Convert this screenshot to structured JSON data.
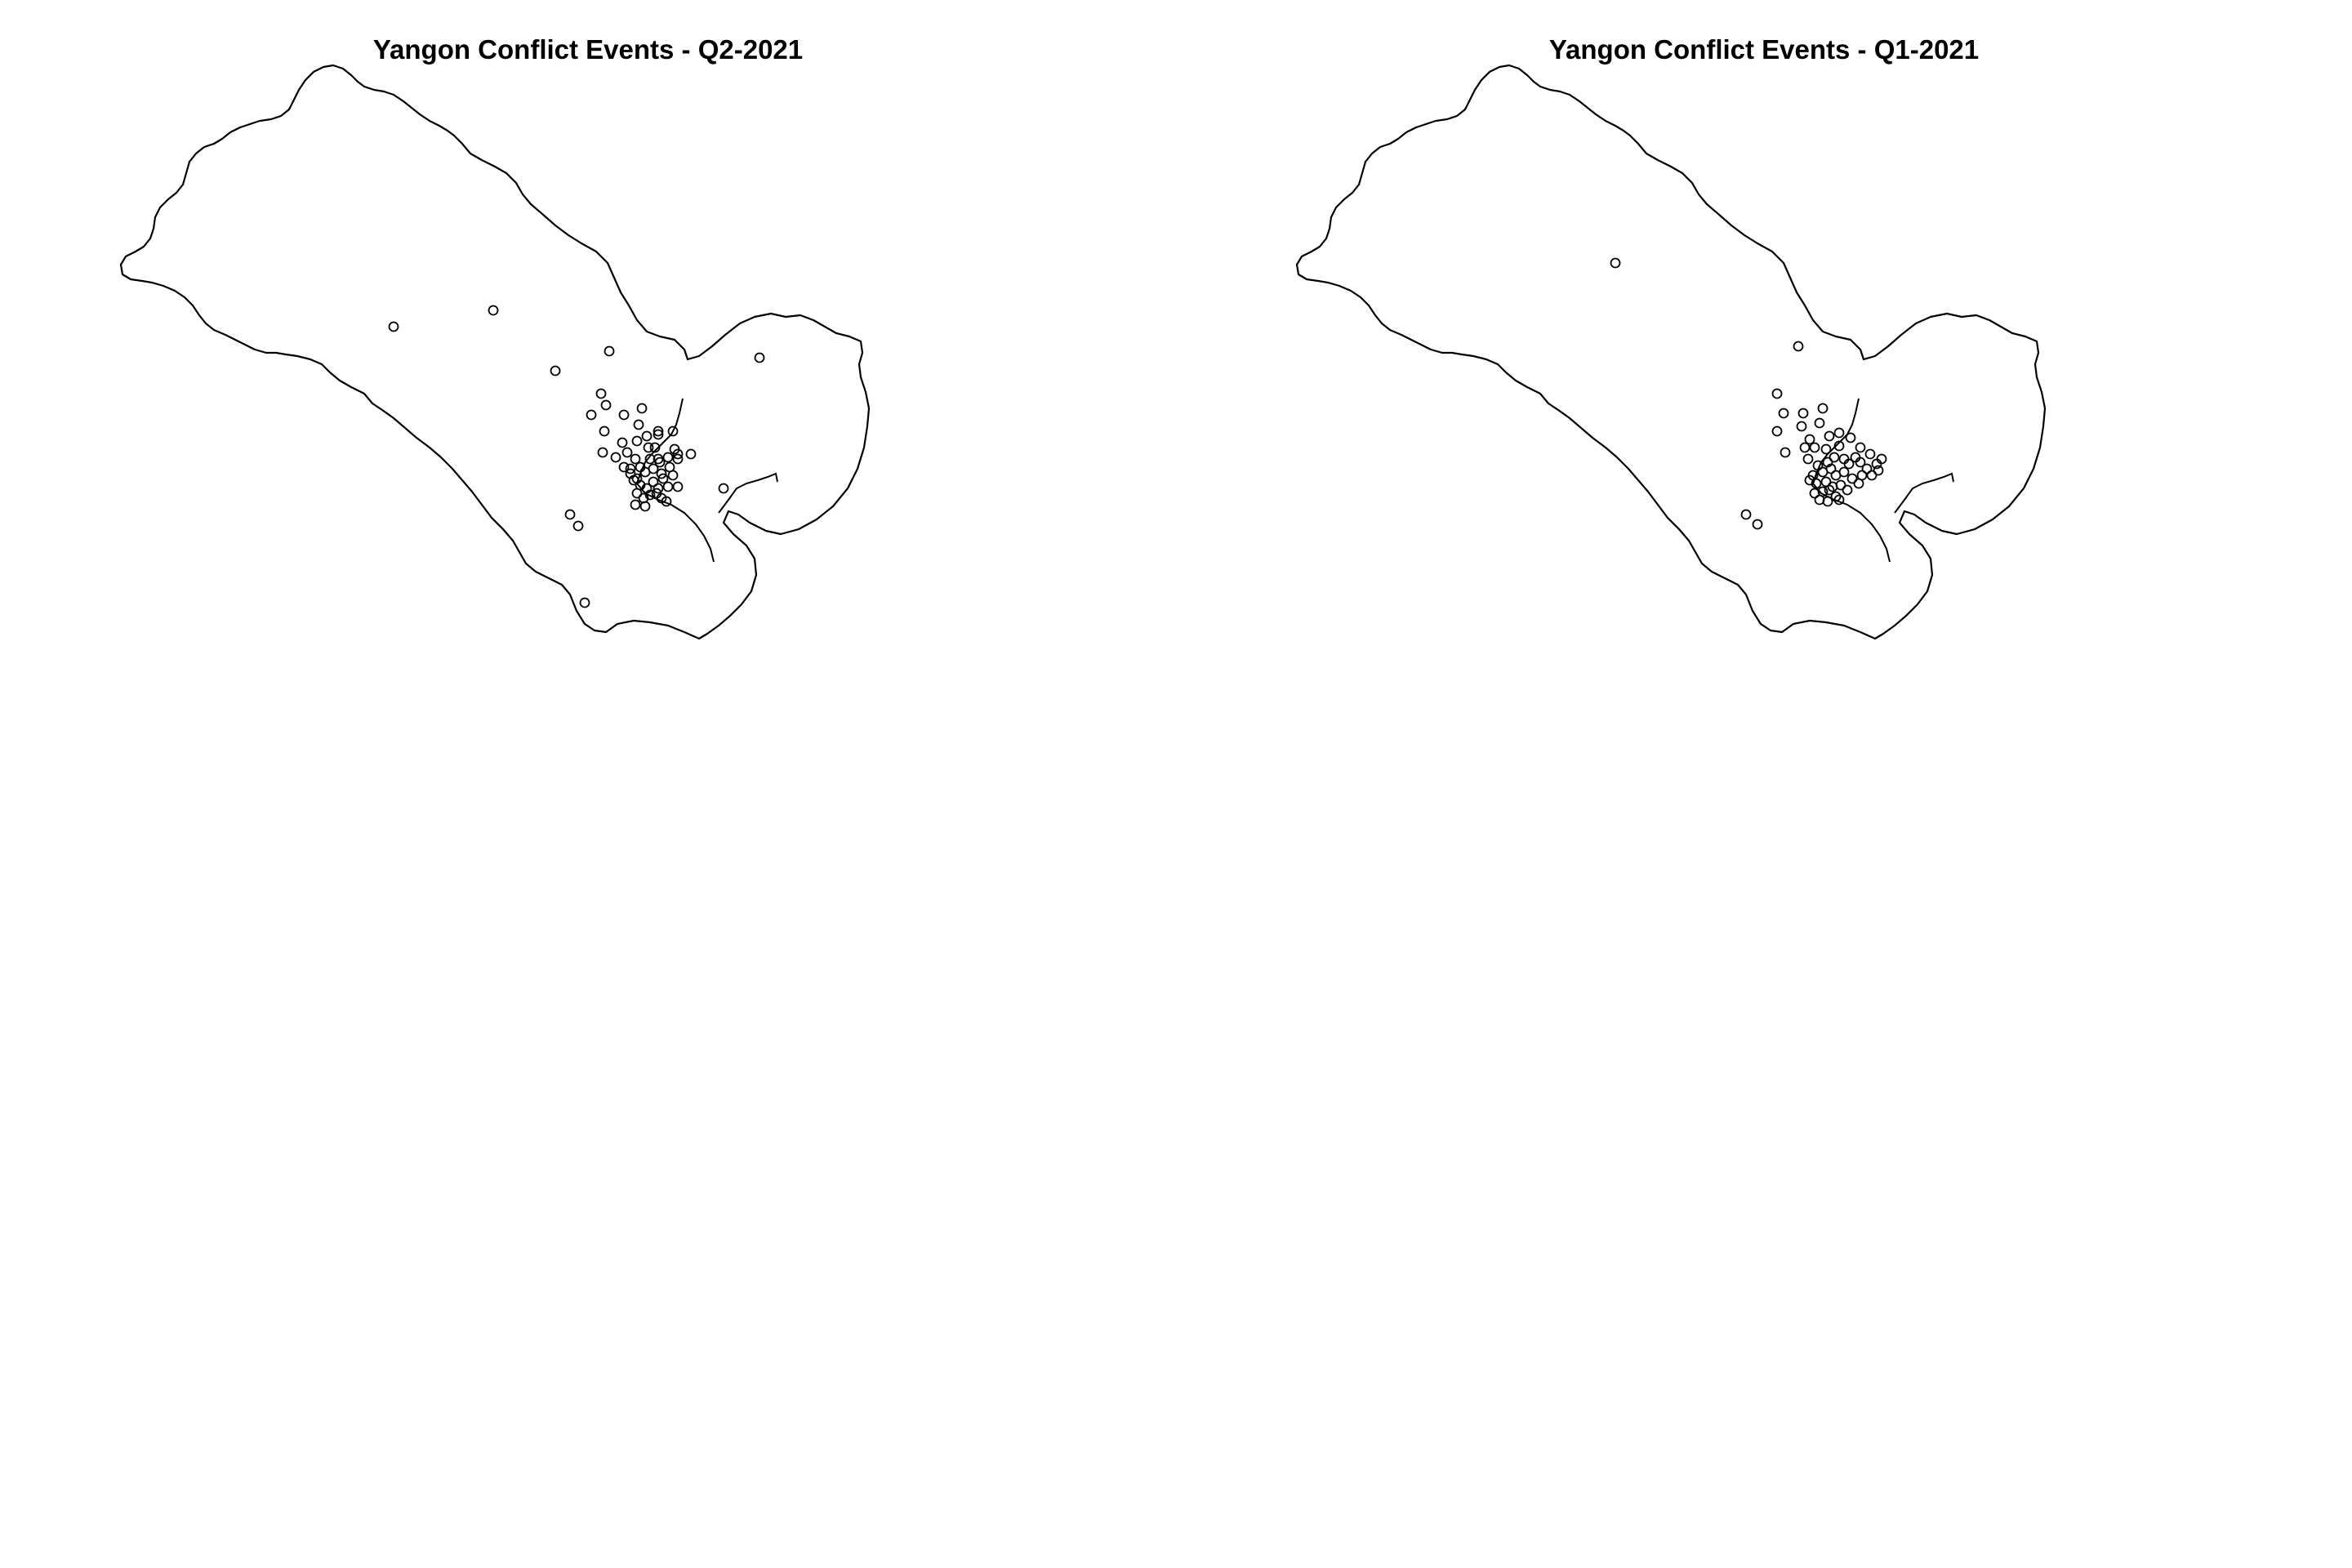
{
  "maps": [
    {
      "title": "Yangon Conflict Events - Q2-2021",
      "region": "Yangon",
      "period": "Q2-2021",
      "marker": "open-circle",
      "colors": {
        "outline": "#000000",
        "background": "#ffffff"
      }
    },
    {
      "title": "Yangon Conflict Events - Q1-2021",
      "region": "Yangon",
      "period": "Q1-2021",
      "marker": "open-circle",
      "colors": {
        "outline": "#000000",
        "background": "#ffffff"
      }
    }
  ]
}
